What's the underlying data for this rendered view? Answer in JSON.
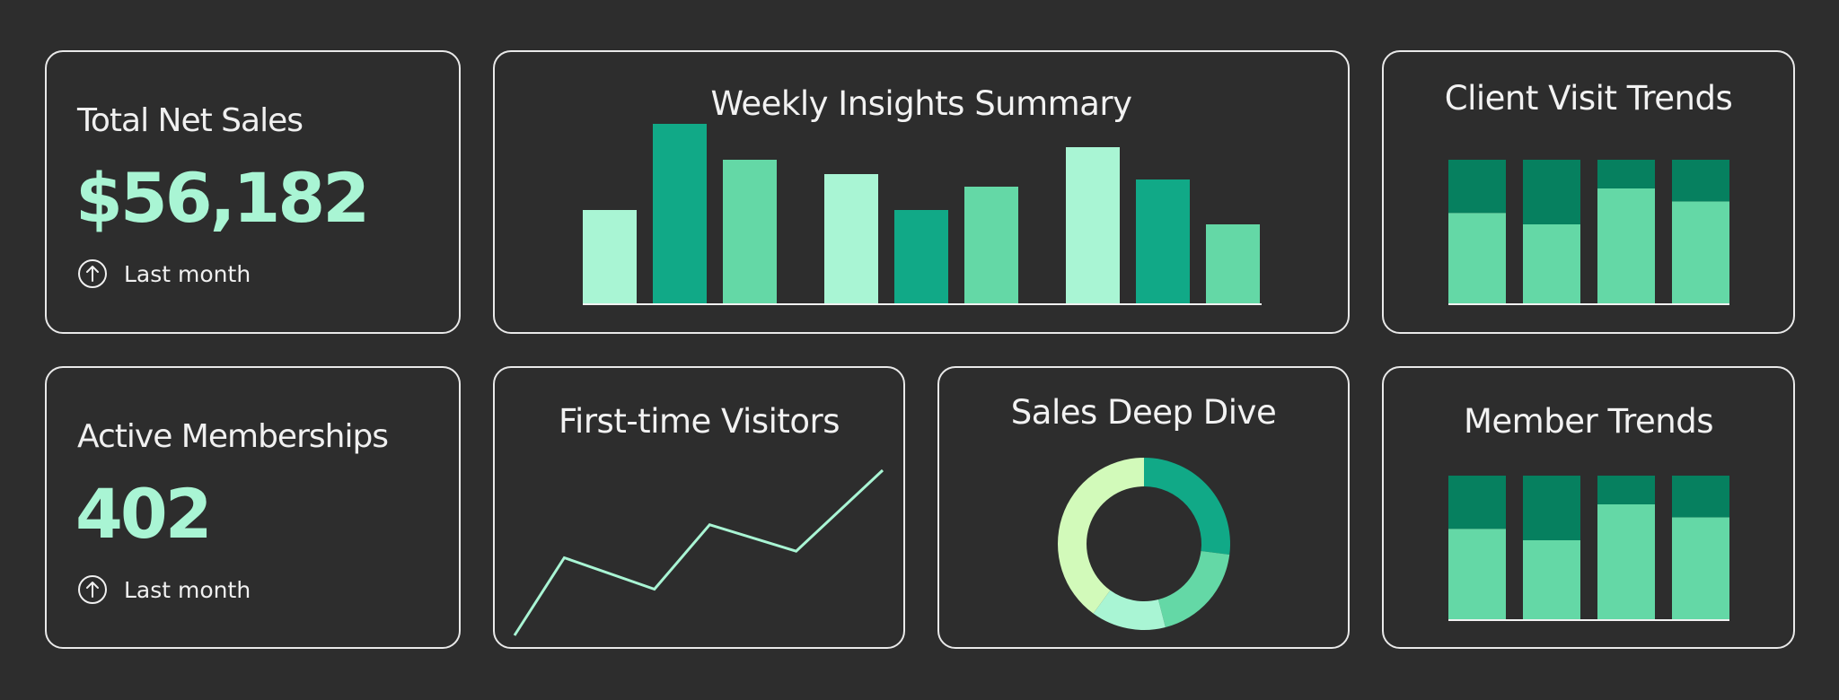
{
  "colors": {
    "light": "#a9f5d4",
    "mid": "#64d8a6",
    "dark": "#11a987",
    "darkest": "#06805f",
    "lime": "#d2faba",
    "line": "#a9f5d4",
    "axis": "#f2f2f2"
  },
  "kpis": [
    {
      "label": "Total Net Sales",
      "value": "$56,182",
      "foot": "Last month",
      "icon": "arrow-up-circle-icon"
    },
    {
      "label": "Active Memberships",
      "value": "402",
      "foot": "Last month",
      "icon": "arrow-up-circle-icon"
    }
  ],
  "chart_data": [
    {
      "type": "bar",
      "title": "Weekly Insights Summary",
      "groups": 3,
      "series_colors": [
        "light",
        "dark",
        "mid"
      ],
      "values": [
        [
          52,
          100,
          80
        ],
        [
          72,
          52,
          65
        ],
        [
          87,
          69,
          44
        ]
      ],
      "ylim": [
        0,
        100
      ]
    },
    {
      "type": "bar",
      "stacked": true,
      "title": "Client Visit Trends",
      "series": [
        {
          "color": "mid",
          "values": [
            63,
            55,
            80,
            71
          ]
        },
        {
          "color": "darkest",
          "values": [
            37,
            45,
            20,
            29
          ]
        }
      ],
      "ylim": [
        0,
        100
      ]
    },
    {
      "type": "line",
      "title": "First-time Visitors",
      "values": [
        0,
        47,
        28,
        67,
        51,
        100
      ],
      "ylim": [
        0,
        100
      ]
    },
    {
      "type": "pie",
      "donut": true,
      "title": "Sales Deep Dive",
      "slices": [
        {
          "color": "dark",
          "value": 27
        },
        {
          "color": "mid",
          "value": 19
        },
        {
          "color": "light",
          "value": 14
        },
        {
          "color": "lime",
          "value": 40
        }
      ]
    },
    {
      "type": "bar",
      "stacked": true,
      "title": "Member Trends",
      "series": [
        {
          "color": "mid",
          "values": [
            63,
            55,
            80,
            71
          ]
        },
        {
          "color": "darkest",
          "values": [
            37,
            45,
            20,
            29
          ]
        }
      ],
      "ylim": [
        0,
        100
      ]
    }
  ]
}
